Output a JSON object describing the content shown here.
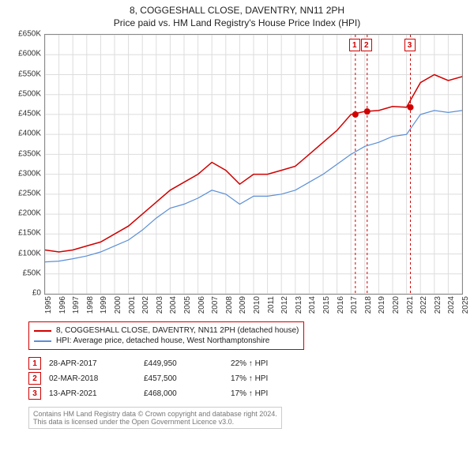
{
  "title": "8, COGGESHALL CLOSE, DAVENTRY, NN11 2PH",
  "subtitle": "Price paid vs. HM Land Registry's House Price Index (HPI)",
  "chart": {
    "type": "line",
    "x_years": [
      1995,
      1996,
      1997,
      1998,
      1999,
      2000,
      2001,
      2002,
      2003,
      2004,
      2005,
      2006,
      2007,
      2008,
      2009,
      2010,
      2011,
      2012,
      2013,
      2014,
      2015,
      2016,
      2017,
      2018,
      2019,
      2020,
      2021,
      2022,
      2023,
      2024,
      2025
    ],
    "ylim": [
      0,
      650000
    ],
    "ytick_step": 50000,
    "ytick_prefix": "£",
    "ytick_suffix": "K",
    "background_color": "#ffffff",
    "grid_color": "#dddddd",
    "axis_color": "#888888",
    "series": [
      {
        "name": "8, COGGESHALL CLOSE, DAVENTRY, NN11 2PH (detached house)",
        "color": "#d00000",
        "line_width": 1.5,
        "values_by_year": {
          "1995": 110000,
          "1996": 105000,
          "1997": 110000,
          "1998": 120000,
          "1999": 130000,
          "2000": 150000,
          "2001": 170000,
          "2002": 200000,
          "2003": 230000,
          "2004": 260000,
          "2005": 280000,
          "2006": 300000,
          "2007": 330000,
          "2008": 310000,
          "2009": 275000,
          "2010": 300000,
          "2011": 300000,
          "2012": 310000,
          "2013": 320000,
          "2014": 350000,
          "2015": 380000,
          "2016": 410000,
          "2017": 449950,
          "2018": 457500,
          "2019": 460000,
          "2020": 470000,
          "2021": 468000,
          "2022": 530000,
          "2023": 550000,
          "2024": 535000,
          "2025": 545000
        }
      },
      {
        "name": "HPI: Average price, detached house, West Northamptonshire",
        "color": "#5b8fd6",
        "line_width": 1.2,
        "values_by_year": {
          "1995": 80000,
          "1996": 82000,
          "1997": 88000,
          "1998": 95000,
          "1999": 105000,
          "2000": 120000,
          "2001": 135000,
          "2002": 160000,
          "2003": 190000,
          "2004": 215000,
          "2005": 225000,
          "2006": 240000,
          "2007": 260000,
          "2008": 250000,
          "2009": 225000,
          "2010": 245000,
          "2011": 245000,
          "2012": 250000,
          "2013": 260000,
          "2014": 280000,
          "2015": 300000,
          "2016": 325000,
          "2017": 350000,
          "2018": 370000,
          "2019": 380000,
          "2020": 395000,
          "2021": 400000,
          "2022": 450000,
          "2023": 460000,
          "2024": 455000,
          "2025": 460000
        }
      }
    ],
    "transaction_markers": [
      {
        "num": "1",
        "year": 2017.32,
        "price": 449950
      },
      {
        "num": "2",
        "year": 2018.17,
        "price": 457500
      },
      {
        "num": "3",
        "year": 2021.28,
        "price": 468000
      }
    ],
    "marker_color": "#d00000",
    "marker_radius": 4
  },
  "legend": {
    "border_color": "#d00000",
    "items": [
      {
        "color": "#d00000",
        "label": "8, COGGESHALL CLOSE, DAVENTRY, NN11 2PH (detached house)"
      },
      {
        "color": "#5b8fd6",
        "label": "HPI: Average price, detached house, West Northamptonshire"
      }
    ]
  },
  "transactions": [
    {
      "num": "1",
      "date": "28-APR-2017",
      "price": "£449,950",
      "delta": "22% ↑ HPI"
    },
    {
      "num": "2",
      "date": "02-MAR-2018",
      "price": "£457,500",
      "delta": "17% ↑ HPI"
    },
    {
      "num": "3",
      "date": "13-APR-2021",
      "price": "£468,000",
      "delta": "17% ↑ HPI"
    }
  ],
  "footnote_line1": "Contains HM Land Registry data © Crown copyright and database right 2024.",
  "footnote_line2": "This data is licensed under the Open Government Licence v3.0."
}
